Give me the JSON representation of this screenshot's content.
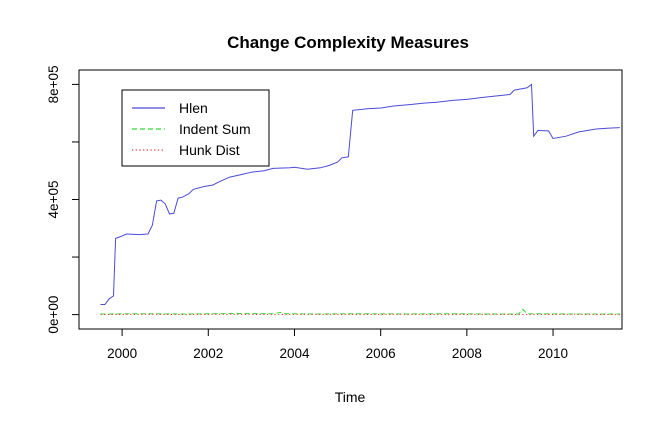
{
  "chart_data": {
    "type": "line",
    "title": "Change Complexity Measures",
    "xlabel": "Time",
    "ylabel": "",
    "xlim": [
      1999.0,
      2011.6
    ],
    "ylim": [
      -50000,
      850000
    ],
    "x_ticks": [
      2000,
      2002,
      2004,
      2006,
      2008,
      2010
    ],
    "x_tick_labels": [
      "2000",
      "2002",
      "2004",
      "2006",
      "2008",
      "2010"
    ],
    "y_ticks": [
      0,
      200000,
      400000,
      600000,
      800000
    ],
    "y_tick_labels": [
      "0e+00",
      "",
      "4e+05",
      "",
      "8e+05"
    ],
    "legend_position": "top-left",
    "series": [
      {
        "name": "Hlen",
        "color": "#4b4bd9",
        "dash": "solid",
        "points": [
          [
            1999.5,
            35000
          ],
          [
            1999.6,
            35000
          ],
          [
            1999.7,
            55000
          ],
          [
            1999.8,
            65000
          ],
          [
            1999.85,
            265000
          ],
          [
            1999.95,
            270000
          ],
          [
            2000.1,
            280000
          ],
          [
            2000.4,
            278000
          ],
          [
            2000.6,
            280000
          ],
          [
            2000.7,
            310000
          ],
          [
            2000.8,
            395000
          ],
          [
            2000.9,
            398000
          ],
          [
            2001.0,
            385000
          ],
          [
            2001.1,
            350000
          ],
          [
            2001.2,
            352000
          ],
          [
            2001.3,
            405000
          ],
          [
            2001.4,
            408000
          ],
          [
            2001.55,
            420000
          ],
          [
            2001.65,
            435000
          ],
          [
            2001.9,
            445000
          ],
          [
            2002.1,
            450000
          ],
          [
            2002.3,
            465000
          ],
          [
            2002.5,
            478000
          ],
          [
            2002.8,
            488000
          ],
          [
            2003.0,
            495000
          ],
          [
            2003.3,
            500000
          ],
          [
            2003.5,
            508000
          ],
          [
            2003.9,
            510000
          ],
          [
            2004.0,
            512000
          ],
          [
            2004.3,
            505000
          ],
          [
            2004.6,
            510000
          ],
          [
            2004.8,
            518000
          ],
          [
            2005.0,
            530000
          ],
          [
            2005.1,
            545000
          ],
          [
            2005.25,
            548000
          ],
          [
            2005.35,
            710000
          ],
          [
            2005.7,
            715000
          ],
          [
            2006.0,
            718000
          ],
          [
            2006.3,
            725000
          ],
          [
            2006.7,
            730000
          ],
          [
            2007.0,
            735000
          ],
          [
            2007.3,
            738000
          ],
          [
            2007.7,
            745000
          ],
          [
            2008.0,
            748000
          ],
          [
            2008.4,
            755000
          ],
          [
            2008.7,
            760000
          ],
          [
            2009.0,
            765000
          ],
          [
            2009.1,
            780000
          ],
          [
            2009.4,
            788000
          ],
          [
            2009.5,
            800000
          ],
          [
            2009.55,
            620000
          ],
          [
            2009.65,
            640000
          ],
          [
            2009.9,
            638000
          ],
          [
            2010.0,
            612000
          ],
          [
            2010.3,
            620000
          ],
          [
            2010.6,
            635000
          ],
          [
            2011.0,
            645000
          ],
          [
            2011.3,
            648000
          ],
          [
            2011.55,
            650000
          ]
        ]
      },
      {
        "name": "Indent Sum",
        "color": "#33dd33",
        "dash": "dashed",
        "points": [
          [
            1999.5,
            2000
          ],
          [
            2000.5,
            3000
          ],
          [
            2001.5,
            2000
          ],
          [
            2002.5,
            4000
          ],
          [
            2003.5,
            3000
          ],
          [
            2003.7,
            8000
          ],
          [
            2003.8,
            3000
          ],
          [
            2004.5,
            2000
          ],
          [
            2005.5,
            3000
          ],
          [
            2006.5,
            2000
          ],
          [
            2007.5,
            3000
          ],
          [
            2008.5,
            2000
          ],
          [
            2009.2,
            2000
          ],
          [
            2009.3,
            18000
          ],
          [
            2009.4,
            3000
          ],
          [
            2010.5,
            2000
          ],
          [
            2011.55,
            2000
          ]
        ]
      },
      {
        "name": "Hunk Dist",
        "color": "#ee3333",
        "dash": "dotted",
        "points": [
          [
            1999.5,
            0
          ],
          [
            2000.5,
            1000
          ],
          [
            2001.5,
            0
          ],
          [
            2002.5,
            1000
          ],
          [
            2003.5,
            0
          ],
          [
            2004.5,
            1000
          ],
          [
            2005.5,
            0
          ],
          [
            2006.5,
            1000
          ],
          [
            2007.5,
            0
          ],
          [
            2008.5,
            1000
          ],
          [
            2009.5,
            0
          ],
          [
            2010.5,
            1000
          ],
          [
            2011.55,
            0
          ]
        ]
      }
    ]
  }
}
